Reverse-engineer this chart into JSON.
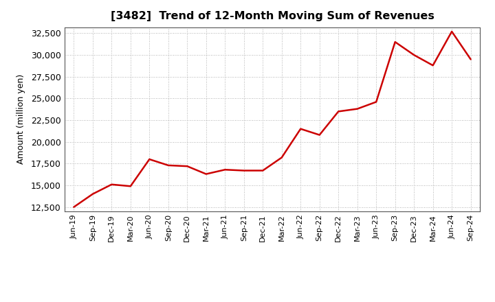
{
  "title": "[3482]  Trend of 12-Month Moving Sum of Revenues",
  "ylabel": "Amount (million yen)",
  "line_color": "#cc0000",
  "background_color": "#ffffff",
  "plot_bg_color": "#ffffff",
  "grid_color": "#999999",
  "ylim": [
    12000,
    33200
  ],
  "yticks": [
    12500,
    15000,
    17500,
    20000,
    22500,
    25000,
    27500,
    30000,
    32500
  ],
  "x_labels": [
    "Jun-19",
    "Sep-19",
    "Dec-19",
    "Mar-20",
    "Jun-20",
    "Sep-20",
    "Dec-20",
    "Mar-21",
    "Jun-21",
    "Sep-21",
    "Dec-21",
    "Mar-22",
    "Jun-22",
    "Sep-22",
    "Dec-22",
    "Mar-23",
    "Jun-23",
    "Sep-23",
    "Dec-23",
    "Mar-24",
    "Jun-24",
    "Sep-24"
  ],
  "y_values": [
    12500,
    14000,
    15100,
    14900,
    18000,
    17300,
    17200,
    16300,
    16800,
    16700,
    16700,
    18200,
    21500,
    20800,
    23500,
    23800,
    24600,
    31500,
    30000,
    28800,
    32700,
    29500
  ]
}
